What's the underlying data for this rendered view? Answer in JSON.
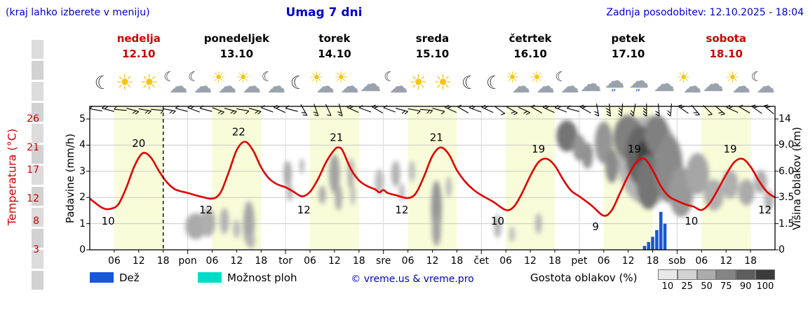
{
  "header": {
    "menu_note": "(kraj lahko izberete v meniju)",
    "title": "Umag 7 dni",
    "last_update": "Zadnja posodobitev: 12.10.2025 - 18:04"
  },
  "days": [
    {
      "name": "nedelja",
      "date": "12.10",
      "accent": true
    },
    {
      "name": "ponedeljek",
      "date": "13.10",
      "accent": false
    },
    {
      "name": "torek",
      "date": "14.10",
      "accent": false
    },
    {
      "name": "sreda",
      "date": "15.10",
      "accent": false
    },
    {
      "name": "četrtek",
      "date": "16.10",
      "accent": false
    },
    {
      "name": "petek",
      "date": "17.10",
      "accent": false
    },
    {
      "name": "sobota",
      "date": "18.10",
      "accent": true
    }
  ],
  "axes": {
    "temp_label": "Temperatura (°C)",
    "temp_ticks": [
      26,
      21,
      17,
      12,
      8,
      3
    ],
    "precip_label": "Padavine (mm/h)",
    "precip_ticks": [
      5,
      4,
      3,
      2,
      1,
      0
    ],
    "cloud_label": "Višina oblakov (km)",
    "cloud_ticks": [
      "14",
      "9.0",
      "6.0",
      "3.5",
      "1.5",
      "0"
    ],
    "x_hour_labels": [
      "06",
      "12",
      "18"
    ],
    "x_day_labels": [
      "pon",
      "tor",
      "sre",
      "čet",
      "pet",
      "sob"
    ]
  },
  "legend": {
    "rain_label": "Dež",
    "rain_color": "#1857d6",
    "showers_label": "Možnost ploh",
    "showers_color": "#00ddc6",
    "copyright": "© vreme.us & vreme.pro",
    "cloud_density_label": "Gostota oblakov (%)",
    "cloud_scale_values": [
      "10",
      "25",
      "50",
      "75",
      "90",
      "100"
    ],
    "cloud_scale_colors": [
      "#e8e8e8",
      "#d2d2d2",
      "#ababab",
      "#858585",
      "#5d5d5d",
      "#3b3b3b"
    ]
  },
  "chart_data": {
    "type": "line",
    "title": "Umag 7 dni",
    "x_unit": "hours from nedelja 12.10 00:00",
    "x_range": [
      0,
      168
    ],
    "temp_axis_range_c": [
      3,
      26
    ],
    "precip_axis_range_mmh": [
      0,
      5
    ],
    "now_line_hour": 18,
    "day_band_hours": [
      [
        6,
        18
      ],
      [
        30,
        42
      ],
      [
        54,
        66
      ],
      [
        78,
        90
      ],
      [
        102,
        114
      ],
      [
        126,
        138
      ],
      [
        150,
        162
      ]
    ],
    "temperature_points": [
      [
        0,
        12
      ],
      [
        3,
        10.4
      ],
      [
        5,
        10.2
      ],
      [
        7,
        11
      ],
      [
        9,
        14
      ],
      [
        11,
        17.8
      ],
      [
        13,
        20
      ],
      [
        15,
        19.2
      ],
      [
        17,
        16.8
      ],
      [
        19,
        14.8
      ],
      [
        21,
        13.6
      ],
      [
        24,
        13
      ],
      [
        27,
        12.4
      ],
      [
        30,
        12
      ],
      [
        32,
        13
      ],
      [
        34,
        16.5
      ],
      [
        36,
        20.5
      ],
      [
        38,
        22
      ],
      [
        40,
        20.5
      ],
      [
        42,
        17.5
      ],
      [
        44,
        15.5
      ],
      [
        46,
        14.5
      ],
      [
        48,
        14
      ],
      [
        50,
        13.2
      ],
      [
        52,
        12.4
      ],
      [
        54,
        13.2
      ],
      [
        56,
        15.5
      ],
      [
        58,
        18.5
      ],
      [
        60,
        20.6
      ],
      [
        61,
        21
      ],
      [
        62,
        20.4
      ],
      [
        64,
        17.2
      ],
      [
        66,
        15.2
      ],
      [
        68,
        14.2
      ],
      [
        70,
        13.6
      ],
      [
        71,
        13.1
      ],
      [
        72,
        13.5
      ],
      [
        73,
        13
      ],
      [
        75,
        12.6
      ],
      [
        78,
        12.1
      ],
      [
        80,
        13
      ],
      [
        82,
        16
      ],
      [
        84,
        19.5
      ],
      [
        86,
        21
      ],
      [
        88,
        19.8
      ],
      [
        90,
        17
      ],
      [
        92,
        15
      ],
      [
        94,
        13.6
      ],
      [
        96,
        12.6
      ],
      [
        99,
        11.4
      ],
      [
        102,
        10
      ],
      [
        104,
        10.6
      ],
      [
        106,
        13
      ],
      [
        108,
        16
      ],
      [
        110,
        18.4
      ],
      [
        112,
        19
      ],
      [
        114,
        17.8
      ],
      [
        116,
        15.4
      ],
      [
        118,
        13.4
      ],
      [
        120,
        12.4
      ],
      [
        123,
        10.8
      ],
      [
        126,
        9
      ],
      [
        128,
        10
      ],
      [
        130,
        13
      ],
      [
        132,
        16
      ],
      [
        134,
        18.4
      ],
      [
        136,
        19
      ],
      [
        138,
        17
      ],
      [
        140,
        14.2
      ],
      [
        142,
        12.4
      ],
      [
        144,
        11.6
      ],
      [
        146,
        11
      ],
      [
        148,
        10.6
      ],
      [
        150,
        10
      ],
      [
        152,
        11.2
      ],
      [
        154,
        13.6
      ],
      [
        156,
        16.2
      ],
      [
        158,
        18.4
      ],
      [
        160,
        19
      ],
      [
        162,
        17.6
      ],
      [
        164,
        15.2
      ],
      [
        166,
        13.2
      ],
      [
        168,
        12.2
      ]
    ],
    "temp_max_labels": [
      [
        20,
        12
      ],
      [
        22,
        36.5
      ],
      [
        21,
        60.5
      ],
      [
        21,
        85
      ],
      [
        19,
        110
      ],
      [
        19,
        133.5
      ],
      [
        19,
        157
      ]
    ],
    "temp_min_labels": [
      [
        10,
        4.5
      ],
      [
        12,
        28.5
      ],
      [
        12,
        52.5
      ],
      [
        12,
        76.5
      ],
      [
        10,
        100
      ],
      [
        9,
        124
      ],
      [
        10,
        147.5
      ],
      [
        12,
        165.5
      ]
    ],
    "rain_bars_mmh": [
      [
        136,
        0.15
      ],
      [
        137,
        0.3
      ],
      [
        138,
        0.5
      ],
      [
        139,
        0.75
      ],
      [
        140,
        1.45
      ],
      [
        141,
        1.0
      ]
    ],
    "weather_icons": [
      "moon",
      "sun",
      "sun",
      "cloud-moon",
      "cloud-moon",
      "sun-cloud",
      "sun-cloud",
      "cloud-moon",
      "moon",
      "sun-cloud",
      "sun-cloud",
      "cloud",
      "cloud-moon",
      "sun",
      "sun",
      "moon",
      "moon",
      "sun-cloud",
      "sun-cloud",
      "cloud-moon",
      "cloud",
      "rain",
      "rain",
      "cloud",
      "sun-cloud",
      "cloud",
      "sun-cloud",
      "cloud-moon"
    ],
    "wind_barbs": [
      [
        190,
        1
      ],
      [
        195,
        2
      ],
      [
        185,
        1
      ],
      [
        15,
        2
      ],
      [
        10,
        2
      ],
      [
        5,
        1
      ],
      [
        10,
        2
      ],
      [
        195,
        1
      ],
      [
        200,
        2
      ],
      [
        195,
        1
      ],
      [
        20,
        2
      ],
      [
        15,
        2
      ],
      [
        10,
        1
      ],
      [
        15,
        2
      ],
      [
        200,
        1
      ],
      [
        205,
        2
      ],
      [
        195,
        1
      ],
      [
        60,
        2
      ],
      [
        70,
        2
      ],
      [
        65,
        1
      ],
      [
        75,
        2
      ],
      [
        205,
        2
      ],
      [
        200,
        1
      ],
      [
        210,
        2
      ],
      [
        200,
        1
      ],
      [
        15,
        2
      ],
      [
        10,
        1
      ],
      [
        5,
        2
      ],
      [
        15,
        1
      ],
      [
        205,
        2
      ],
      [
        210,
        1
      ],
      [
        200,
        2
      ],
      [
        205,
        2
      ],
      [
        35,
        1
      ],
      [
        30,
        2
      ],
      [
        25,
        2
      ],
      [
        210,
        1
      ],
      [
        205,
        2
      ],
      [
        200,
        2
      ],
      [
        195,
        1
      ],
      [
        210,
        2
      ],
      [
        80,
        2
      ],
      [
        85,
        3
      ],
      [
        95,
        3
      ],
      [
        100,
        2
      ],
      [
        90,
        3
      ],
      [
        85,
        2
      ],
      [
        95,
        2
      ],
      [
        215,
        2
      ],
      [
        50,
        2
      ],
      [
        45,
        1
      ],
      [
        40,
        2
      ],
      [
        205,
        2
      ],
      [
        210,
        1
      ],
      [
        215,
        2
      ],
      [
        220,
        2
      ]
    ],
    "cloud_blobs": [
      [
        26,
        0.9,
        2.6,
        0.5,
        0.3
      ],
      [
        29,
        1.05,
        1.8,
        0.55,
        0.28
      ],
      [
        33,
        1.1,
        1.1,
        0.5,
        0.26
      ],
      [
        36,
        0.8,
        0.9,
        0.35,
        0.22
      ],
      [
        39,
        1.0,
        1.4,
        0.85,
        0.32
      ],
      [
        39.5,
        0.35,
        1.0,
        0.3,
        0.25
      ],
      [
        48.5,
        2.9,
        1.0,
        0.5,
        0.3
      ],
      [
        49,
        2.2,
        0.7,
        0.35,
        0.26
      ],
      [
        52,
        3.2,
        0.6,
        0.3,
        0.22
      ],
      [
        57,
        2.1,
        0.9,
        0.35,
        0.28
      ],
      [
        60,
        2.9,
        1.3,
        0.75,
        0.34
      ],
      [
        61,
        2.0,
        0.9,
        0.5,
        0.3
      ],
      [
        64,
        2.9,
        0.8,
        0.6,
        0.27
      ],
      [
        64.5,
        2.1,
        0.6,
        0.4,
        0.22
      ],
      [
        71,
        2.6,
        1.1,
        0.5,
        0.22
      ],
      [
        75,
        2.9,
        1.1,
        0.5,
        0.26
      ],
      [
        76.5,
        2.2,
        0.7,
        0.35,
        0.22
      ],
      [
        79,
        3.0,
        0.8,
        0.4,
        0.2
      ],
      [
        85,
        1.6,
        1.3,
        1.05,
        0.4
      ],
      [
        85,
        0.75,
        1.1,
        0.6,
        0.34
      ],
      [
        88,
        2.4,
        0.7,
        0.4,
        0.22
      ],
      [
        100,
        0.9,
        0.9,
        0.45,
        0.26
      ],
      [
        103.5,
        0.6,
        0.7,
        0.3,
        0.2
      ],
      [
        110,
        1.0,
        0.8,
        0.4,
        0.24
      ],
      [
        137,
        3.4,
        7.5,
        1.7,
        0.25
      ],
      [
        117,
        4.35,
        2.6,
        0.6,
        0.55
      ],
      [
        120,
        3.9,
        1.6,
        0.5,
        0.4
      ],
      [
        122,
        3.6,
        1.4,
        0.5,
        0.42
      ],
      [
        126,
        4.1,
        2.2,
        0.8,
        0.4
      ],
      [
        128,
        3.2,
        1.6,
        0.65,
        0.45
      ],
      [
        132,
        4.3,
        3.6,
        0.85,
        0.5
      ],
      [
        135,
        3.6,
        3.6,
        1.15,
        0.62
      ],
      [
        136,
        3.5,
        1.8,
        0.7,
        0.8
      ],
      [
        137,
        2.6,
        3.0,
        1.05,
        0.55
      ],
      [
        139,
        4.4,
        3.0,
        0.75,
        0.5
      ],
      [
        142,
        3.1,
        3.4,
        1.3,
        0.45
      ],
      [
        145,
        2.2,
        3.0,
        0.95,
        0.38
      ],
      [
        149,
        2.9,
        2.8,
        0.8,
        0.32
      ],
      [
        153,
        2.1,
        2.4,
        0.6,
        0.28
      ],
      [
        157,
        2.5,
        2.0,
        0.55,
        0.28
      ],
      [
        161,
        2.2,
        2.0,
        0.5,
        0.3
      ],
      [
        164.5,
        2.6,
        1.6,
        0.45,
        0.28
      ],
      [
        166.5,
        1.9,
        1.2,
        0.4,
        0.25
      ]
    ]
  }
}
